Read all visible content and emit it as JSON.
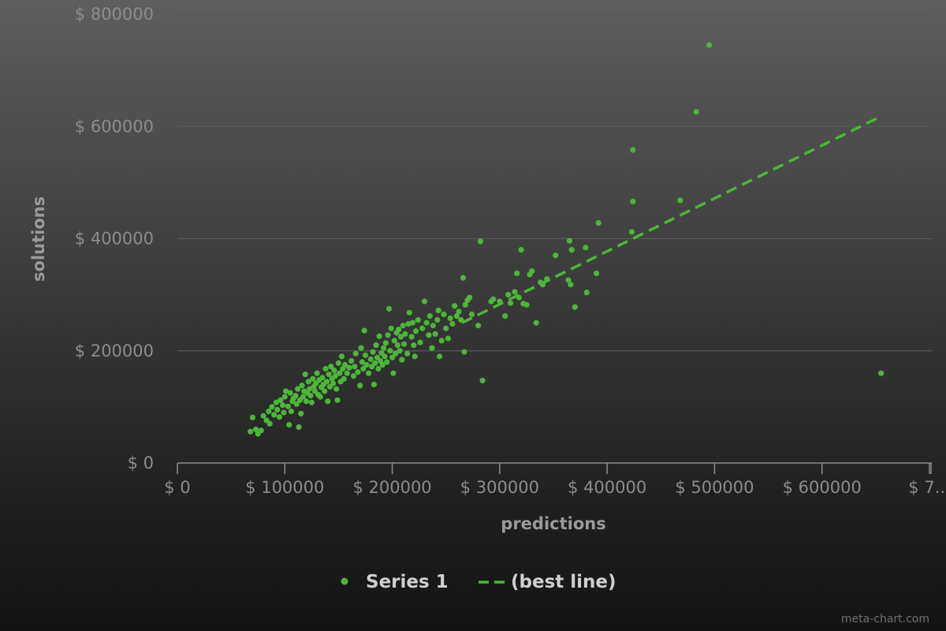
{
  "chart_data": {
    "type": "scatter",
    "xlabel": "predictions",
    "ylabel": "solutions",
    "xlim": [
      0,
      700000
    ],
    "ylim": [
      0,
      800000
    ],
    "x_ticks": [
      "$ 0",
      "$ 100000",
      "$ 200000",
      "$ 300000",
      "$ 400000",
      "$ 500000",
      "$ 600000",
      "$ 7..."
    ],
    "y_ticks": [
      "$ 0",
      "$ 200000",
      "$ 400000",
      "$ 600000",
      "$ 800000"
    ],
    "grid": true,
    "legend_position": "bottom",
    "colors": {
      "series": "#4db53a",
      "grid": "#5a5a5a",
      "axis": "#8c8c8c"
    },
    "series": [
      {
        "name": "Series 1",
        "type": "scatter",
        "points": [
          [
            68000,
            56000
          ],
          [
            70000,
            81000
          ],
          [
            73000,
            60000
          ],
          [
            75000,
            52000
          ],
          [
            78000,
            58000
          ],
          [
            80000,
            84000
          ],
          [
            83000,
            76000
          ],
          [
            85000,
            92000
          ],
          [
            86000,
            70000
          ],
          [
            88000,
            100000
          ],
          [
            90000,
            86000
          ],
          [
            92000,
            108000
          ],
          [
            93000,
            95000
          ],
          [
            95000,
            82000
          ],
          [
            96000,
            112000
          ],
          [
            98000,
            103000
          ],
          [
            99000,
            90000
          ],
          [
            100000,
            118000
          ],
          [
            101000,
            128000
          ],
          [
            103000,
            101000
          ],
          [
            104000,
            68000
          ],
          [
            105000,
            125000
          ],
          [
            106000,
            92000
          ],
          [
            107000,
            110000
          ],
          [
            108000,
            115000
          ],
          [
            110000,
            120000
          ],
          [
            111000,
            105000
          ],
          [
            112000,
            132000
          ],
          [
            113000,
            64000
          ],
          [
            114000,
            112000
          ],
          [
            115000,
            88000
          ],
          [
            116000,
            138000
          ],
          [
            117000,
            118000
          ],
          [
            118000,
            128000
          ],
          [
            119000,
            158000
          ],
          [
            120000,
            110000
          ],
          [
            121000,
            125000
          ],
          [
            122000,
            145000
          ],
          [
            123000,
            132000
          ],
          [
            124000,
            120000
          ],
          [
            125000,
            108000
          ],
          [
            126000,
            150000
          ],
          [
            127000,
            136000
          ],
          [
            128000,
            128000
          ],
          [
            129000,
            142000
          ],
          [
            130000,
            160000
          ],
          [
            131000,
            122000
          ],
          [
            132000,
            148000
          ],
          [
            133000,
            118000
          ],
          [
            134000,
            135000
          ],
          [
            135000,
            152000
          ],
          [
            136000,
            140000
          ],
          [
            137000,
            128000
          ],
          [
            138000,
            168000
          ],
          [
            139000,
            145000
          ],
          [
            140000,
            110000
          ],
          [
            141000,
            158000
          ],
          [
            142000,
            136000
          ],
          [
            143000,
            172000
          ],
          [
            144000,
            150000
          ],
          [
            145000,
            142000
          ],
          [
            146000,
            165000
          ],
          [
            147000,
            155000
          ],
          [
            148000,
            132000
          ],
          [
            149000,
            112000
          ],
          [
            150000,
            178000
          ],
          [
            151000,
            160000
          ],
          [
            152000,
            145000
          ],
          [
            153000,
            190000
          ],
          [
            154000,
            168000
          ],
          [
            155000,
            150000
          ],
          [
            156000,
            175000
          ],
          [
            158000,
            160000
          ],
          [
            160000,
            170000
          ],
          [
            162000,
            182000
          ],
          [
            164000,
            155000
          ],
          [
            165000,
            172000
          ],
          [
            166000,
            195000
          ],
          [
            168000,
            162000
          ],
          [
            170000,
            138000
          ],
          [
            171000,
            205000
          ],
          [
            172000,
            180000
          ],
          [
            173000,
            168000
          ],
          [
            174000,
            236000
          ],
          [
            175000,
            192000
          ],
          [
            176000,
            175000
          ],
          [
            178000,
            160000
          ],
          [
            180000,
            185000
          ],
          [
            181000,
            172000
          ],
          [
            182000,
            198000
          ],
          [
            183000,
            140000
          ],
          [
            184000,
            178000
          ],
          [
            185000,
            210000
          ],
          [
            186000,
            188000
          ],
          [
            187000,
            168000
          ],
          [
            188000,
            226000
          ],
          [
            189000,
            182000
          ],
          [
            190000,
            196000
          ],
          [
            191000,
            175000
          ],
          [
            192000,
            205000
          ],
          [
            193000,
            190000
          ],
          [
            194000,
            214000
          ],
          [
            195000,
            180000
          ],
          [
            196000,
            228000
          ],
          [
            197000,
            275000
          ],
          [
            198000,
            200000
          ],
          [
            199000,
            240000
          ],
          [
            200000,
            188000
          ],
          [
            201000,
            160000
          ],
          [
            202000,
            218000
          ],
          [
            203000,
            195000
          ],
          [
            204000,
            232000
          ],
          [
            205000,
            210000
          ],
          [
            206000,
            238000
          ],
          [
            207000,
            200000
          ],
          [
            208000,
            225000
          ],
          [
            209000,
            184000
          ],
          [
            210000,
            245000
          ],
          [
            211000,
            212000
          ],
          [
            212000,
            230000
          ],
          [
            214000,
            195000
          ],
          [
            215000,
            248000
          ],
          [
            216000,
            268000
          ],
          [
            218000,
            225000
          ],
          [
            219000,
            250000
          ],
          [
            220000,
            210000
          ],
          [
            221000,
            190000
          ],
          [
            222000,
            235000
          ],
          [
            224000,
            255000
          ],
          [
            226000,
            215000
          ],
          [
            228000,
            240000
          ],
          [
            230000,
            288000
          ],
          [
            232000,
            250000
          ],
          [
            234000,
            228000
          ],
          [
            235000,
            262000
          ],
          [
            237000,
            205000
          ],
          [
            238000,
            245000
          ],
          [
            240000,
            230000
          ],
          [
            242000,
            255000
          ],
          [
            243000,
            272000
          ],
          [
            244000,
            190000
          ],
          [
            246000,
            218000
          ],
          [
            248000,
            265000
          ],
          [
            250000,
            240000
          ],
          [
            252000,
            222000
          ],
          [
            254000,
            258000
          ],
          [
            256000,
            248000
          ],
          [
            258000,
            280000
          ],
          [
            260000,
            262000
          ],
          [
            262000,
            270000
          ],
          [
            264000,
            255000
          ],
          [
            266000,
            330000
          ],
          [
            267000,
            198000
          ],
          [
            268000,
            282000
          ],
          [
            270000,
            290000
          ],
          [
            272000,
            295000
          ],
          [
            274000,
            265000
          ],
          [
            280000,
            245000
          ],
          [
            282000,
            395000
          ],
          [
            284000,
            147000
          ],
          [
            292000,
            288000
          ],
          [
            294000,
            292000
          ],
          [
            300000,
            288000
          ],
          [
            305000,
            262000
          ],
          [
            308000,
            300000
          ],
          [
            310000,
            285000
          ],
          [
            314000,
            305000
          ],
          [
            316000,
            338000
          ],
          [
            318000,
            295000
          ],
          [
            320000,
            380000
          ],
          [
            322000,
            284000
          ],
          [
            325000,
            282000
          ],
          [
            328000,
            336000
          ],
          [
            330000,
            342000
          ],
          [
            334000,
            250000
          ],
          [
            338000,
            322000
          ],
          [
            340000,
            318000
          ],
          [
            344000,
            328000
          ],
          [
            352000,
            370000
          ],
          [
            364000,
            326000
          ],
          [
            365000,
            396000
          ],
          [
            366000,
            318000
          ],
          [
            367000,
            380000
          ],
          [
            370000,
            278000
          ],
          [
            380000,
            384000
          ],
          [
            381000,
            304000
          ],
          [
            390000,
            338000
          ],
          [
            392000,
            428000
          ],
          [
            423000,
            412000
          ],
          [
            424000,
            466000
          ],
          [
            424000,
            558000
          ],
          [
            468000,
            468000
          ],
          [
            483000,
            626000
          ],
          [
            495000,
            745000
          ],
          [
            655000,
            160000
          ]
        ]
      },
      {
        "name": "(best line)",
        "type": "line",
        "style": "dashed",
        "points": [
          [
            265000,
            250000
          ],
          [
            655000,
            618000
          ]
        ]
      }
    ]
  },
  "legend": {
    "items": [
      {
        "label": "Series 1",
        "marker": "dot"
      },
      {
        "label": "(best line)",
        "marker": "dash"
      }
    ]
  },
  "credit": "meta-chart.com"
}
